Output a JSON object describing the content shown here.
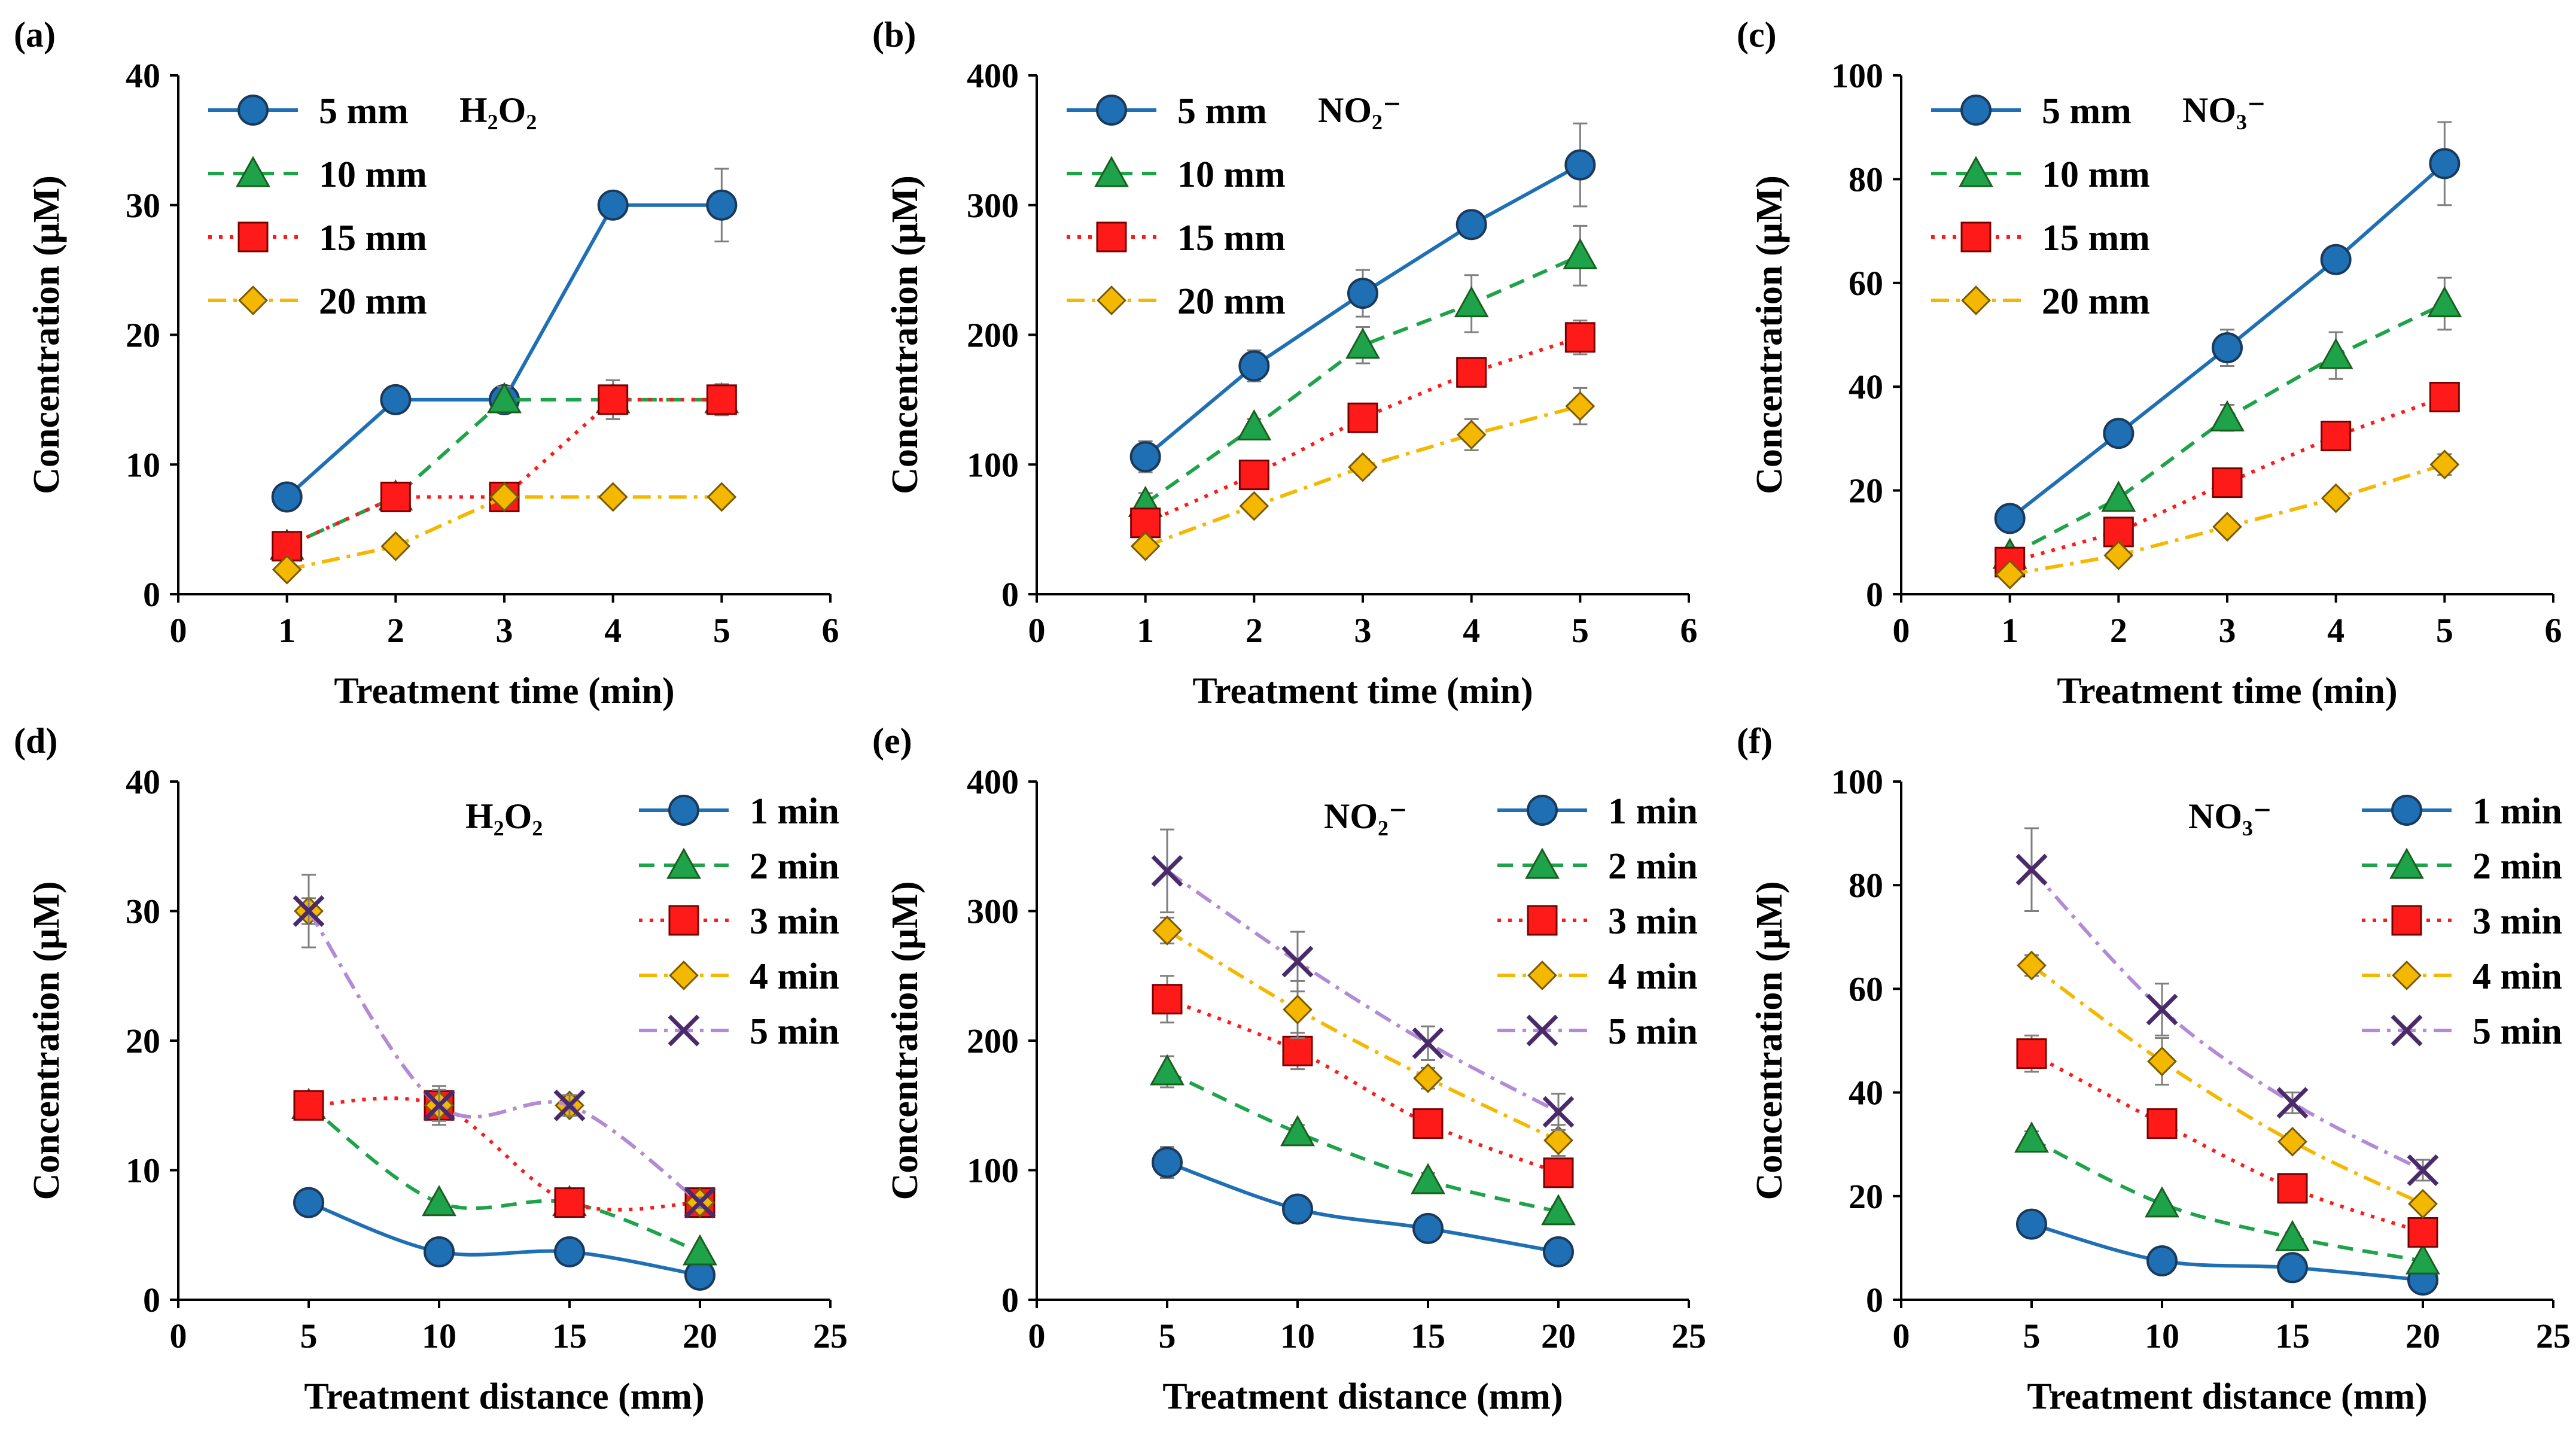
{
  "figure": {
    "y_label": "Concentration (μM)"
  },
  "chart_data": [
    {
      "type": "line",
      "panel_label": "(a)",
      "species": "H₂O₂",
      "xlabel": "Treatment time (min)",
      "ylabel": "Concentration (μM)",
      "xlim": [
        0,
        6
      ],
      "ylim": [
        0,
        40
      ],
      "x_ticks": [
        "0",
        "1",
        "2",
        "3",
        "4",
        "5",
        "6"
      ],
      "y_ticks": [
        "0",
        "10",
        "20",
        "30",
        "40"
      ],
      "legend_position": "top-left",
      "x": [
        1,
        2,
        3,
        4,
        5
      ],
      "series": [
        {
          "name": "5 mm",
          "color": "#1f6fb4",
          "marker": "circle",
          "dash": "solid",
          "values": [
            7.5,
            15,
            15,
            30,
            30
          ],
          "errors": [
            0.4,
            0.8,
            0.8,
            1.0,
            2.8
          ]
        },
        {
          "name": "10 mm",
          "color": "#1ea34a",
          "marker": "triangle",
          "dash": "dashed",
          "values": [
            3.7,
            7.5,
            15,
            15,
            15
          ],
          "errors": [
            0.3,
            0.4,
            1.0,
            0.8,
            0.8
          ]
        },
        {
          "name": "15 mm",
          "color": "#ff1a1a",
          "marker": "square",
          "dash": "dotted",
          "values": [
            3.7,
            7.5,
            7.5,
            15,
            15
          ],
          "errors": [
            0.3,
            0.4,
            0.4,
            1.5,
            1.2
          ]
        },
        {
          "name": "20 mm",
          "color": "#f5b800",
          "marker": "diamond",
          "dash": "dashdot",
          "values": [
            1.9,
            3.7,
            7.5,
            7.5,
            7.5
          ],
          "errors": [
            0.2,
            0.3,
            0.4,
            0.4,
            0.4
          ]
        }
      ]
    },
    {
      "type": "line",
      "panel_label": "(b)",
      "species": "NO₂⁻",
      "xlabel": "Treatment time (min)",
      "ylabel": "Concentration (μM)",
      "xlim": [
        0,
        6
      ],
      "ylim": [
        0,
        400
      ],
      "x_ticks": [
        "0",
        "1",
        "2",
        "3",
        "4",
        "5",
        "6"
      ],
      "y_ticks": [
        "0",
        "100",
        "200",
        "300",
        "400"
      ],
      "legend_position": "top-left",
      "x": [
        1,
        2,
        3,
        4,
        5
      ],
      "series": [
        {
          "name": "5 mm",
          "color": "#1f6fb4",
          "marker": "circle",
          "dash": "solid",
          "values": [
            106,
            176,
            232,
            285,
            331
          ],
          "errors": [
            12,
            12,
            18,
            10,
            32
          ]
        },
        {
          "name": "10 mm",
          "color": "#1ea34a",
          "marker": "triangle",
          "dash": "dashed",
          "values": [
            70,
            129,
            192,
            224,
            261
          ],
          "errors": [
            8,
            6,
            14,
            22,
            23
          ]
        },
        {
          "name": "15 mm",
          "color": "#ff1a1a",
          "marker": "square",
          "dash": "dotted",
          "values": [
            55,
            92,
            136,
            171,
            198
          ],
          "errors": [
            6,
            6,
            10,
            8,
            13
          ]
        },
        {
          "name": "20 mm",
          "color": "#f5b800",
          "marker": "diamond",
          "dash": "dashdot",
          "values": [
            37,
            68,
            98,
            123,
            145
          ],
          "errors": [
            3,
            4,
            6,
            12,
            14
          ]
        }
      ]
    },
    {
      "type": "line",
      "panel_label": "(c)",
      "species": "NO₃⁻",
      "xlabel": "Treatment time (min)",
      "ylabel": "Concentration (μM)",
      "xlim": [
        0,
        6
      ],
      "ylim": [
        0,
        100
      ],
      "x_ticks": [
        "0",
        "1",
        "2",
        "3",
        "4",
        "5",
        "6"
      ],
      "y_ticks": [
        "0",
        "20",
        "40",
        "60",
        "80",
        "100"
      ],
      "legend_position": "top-left",
      "x": [
        1,
        2,
        3,
        4,
        5
      ],
      "series": [
        {
          "name": "5 mm",
          "color": "#1f6fb4",
          "marker": "circle",
          "dash": "solid",
          "values": [
            14.6,
            31,
            47.5,
            64.5,
            83
          ],
          "errors": [
            1,
            1.5,
            3.5,
            2,
            8
          ]
        },
        {
          "name": "10 mm",
          "color": "#1ea34a",
          "marker": "triangle",
          "dash": "dashed",
          "values": [
            7.5,
            18.5,
            34,
            46,
            56
          ],
          "errors": [
            0.8,
            1,
            2.5,
            4.5,
            5
          ]
        },
        {
          "name": "15 mm",
          "color": "#ff1a1a",
          "marker": "square",
          "dash": "dotted",
          "values": [
            6.2,
            12,
            21.5,
            30.5,
            38
          ],
          "errors": [
            0.5,
            1,
            1.5,
            1.5,
            2
          ]
        },
        {
          "name": "20 mm",
          "color": "#f5b800",
          "marker": "diamond",
          "dash": "dashdot",
          "values": [
            3.8,
            7.5,
            13,
            18.5,
            25
          ],
          "errors": [
            0.4,
            0.8,
            1,
            1,
            2
          ]
        }
      ]
    },
    {
      "type": "line",
      "panel_label": "(d)",
      "species": "H₂O₂",
      "xlabel": "Treatment distance (mm)",
      "ylabel": "Concentration (μM)",
      "xlim": [
        0,
        25
      ],
      "ylim": [
        0,
        40
      ],
      "x_ticks": [
        "0",
        "5",
        "10",
        "15",
        "20",
        "25"
      ],
      "y_ticks": [
        "0",
        "10",
        "20",
        "30",
        "40"
      ],
      "legend_position": "top-right",
      "x": [
        5,
        10,
        15,
        20
      ],
      "series": [
        {
          "name": "1 min",
          "color": "#1f6fb4",
          "marker": "circle",
          "dash": "solid",
          "values": [
            7.5,
            3.7,
            3.7,
            1.9
          ],
          "errors": [
            0.4,
            0.3,
            0.3,
            0.2
          ]
        },
        {
          "name": "2 min",
          "color": "#1ea34a",
          "marker": "triangle",
          "dash": "dashed",
          "values": [
            15,
            7.5,
            7.5,
            3.7
          ],
          "errors": [
            0.8,
            0.4,
            0.4,
            0.3
          ]
        },
        {
          "name": "3 min",
          "color": "#ff1a1a",
          "marker": "square",
          "dash": "dotted",
          "values": [
            15,
            15,
            7.5,
            7.5
          ],
          "errors": [
            0.8,
            1,
            0.4,
            0.4
          ]
        },
        {
          "name": "4 min",
          "color": "#f5b800",
          "marker": "diamond",
          "dash": "dashdot",
          "values": [
            30,
            15,
            15,
            7.5
          ],
          "errors": [
            1,
            1.5,
            0.8,
            0.4
          ]
        },
        {
          "name": "5 min",
          "color": "#b28ad8",
          "marker": "x",
          "dash": "dashdot",
          "values": [
            30,
            15,
            15,
            7.5
          ],
          "errors": [
            2.8,
            1.2,
            0.8,
            0.4
          ]
        }
      ]
    },
    {
      "type": "line",
      "panel_label": "(e)",
      "species": "NO₂⁻",
      "xlabel": "Treatment distance (mm)",
      "ylabel": "Concentration (μM)",
      "xlim": [
        0,
        25
      ],
      "ylim": [
        0,
        400
      ],
      "x_ticks": [
        "0",
        "5",
        "10",
        "15",
        "20",
        "25"
      ],
      "y_ticks": [
        "0",
        "100",
        "200",
        "300",
        "400"
      ],
      "legend_position": "top-right",
      "x": [
        5,
        10,
        15,
        20
      ],
      "series": [
        {
          "name": "1 min",
          "color": "#1f6fb4",
          "marker": "circle",
          "dash": "solid",
          "values": [
            106,
            70,
            55,
            37
          ],
          "errors": [
            12,
            6,
            5,
            3
          ]
        },
        {
          "name": "2 min",
          "color": "#1ea34a",
          "marker": "triangle",
          "dash": "dashed",
          "values": [
            176,
            129,
            92,
            68
          ],
          "errors": [
            12,
            6,
            6,
            4
          ]
        },
        {
          "name": "3 min",
          "color": "#ff1a1a",
          "marker": "square",
          "dash": "dotted",
          "values": [
            232,
            192,
            136,
            98
          ],
          "errors": [
            18,
            14,
            10,
            6
          ]
        },
        {
          "name": "4 min",
          "color": "#f5b800",
          "marker": "diamond",
          "dash": "dashdot",
          "values": [
            285,
            224,
            171,
            123
          ],
          "errors": [
            10,
            22,
            8,
            12
          ]
        },
        {
          "name": "5 min",
          "color": "#b28ad8",
          "marker": "x",
          "dash": "dashdot",
          "values": [
            331,
            261,
            198,
            145
          ],
          "errors": [
            32,
            23,
            13,
            14
          ]
        }
      ]
    },
    {
      "type": "line",
      "panel_label": "(f)",
      "species": "NO₃⁻",
      "xlabel": "Treatment distance (mm)",
      "ylabel": "Concentration (μM)",
      "xlim": [
        0,
        25
      ],
      "ylim": [
        0,
        100
      ],
      "x_ticks": [
        "0",
        "5",
        "10",
        "15",
        "20",
        "25"
      ],
      "y_ticks": [
        "0",
        "20",
        "40",
        "60",
        "80",
        "100"
      ],
      "legend_position": "top-right",
      "x": [
        5,
        10,
        15,
        20
      ],
      "series": [
        {
          "name": "1 min",
          "color": "#1f6fb4",
          "marker": "circle",
          "dash": "solid",
          "values": [
            14.6,
            7.5,
            6.2,
            3.8
          ],
          "errors": [
            1,
            0.8,
            0.5,
            0.4
          ]
        },
        {
          "name": "2 min",
          "color": "#1ea34a",
          "marker": "triangle",
          "dash": "dashed",
          "values": [
            31,
            18.5,
            12,
            7.5
          ],
          "errors": [
            1.5,
            1,
            1,
            0.8
          ]
        },
        {
          "name": "3 min",
          "color": "#ff1a1a",
          "marker": "square",
          "dash": "dotted",
          "values": [
            47.5,
            34,
            21.5,
            13
          ],
          "errors": [
            3.5,
            2.5,
            1.5,
            1
          ]
        },
        {
          "name": "4 min",
          "color": "#f5b800",
          "marker": "diamond",
          "dash": "dashdot",
          "values": [
            64.5,
            46,
            30.5,
            18.5
          ],
          "errors": [
            2,
            4.5,
            1.5,
            1
          ]
        },
        {
          "name": "5 min",
          "color": "#b28ad8",
          "marker": "x",
          "dash": "dashdot",
          "values": [
            83,
            56,
            38,
            25
          ],
          "errors": [
            8,
            5,
            2,
            2
          ]
        }
      ]
    }
  ]
}
